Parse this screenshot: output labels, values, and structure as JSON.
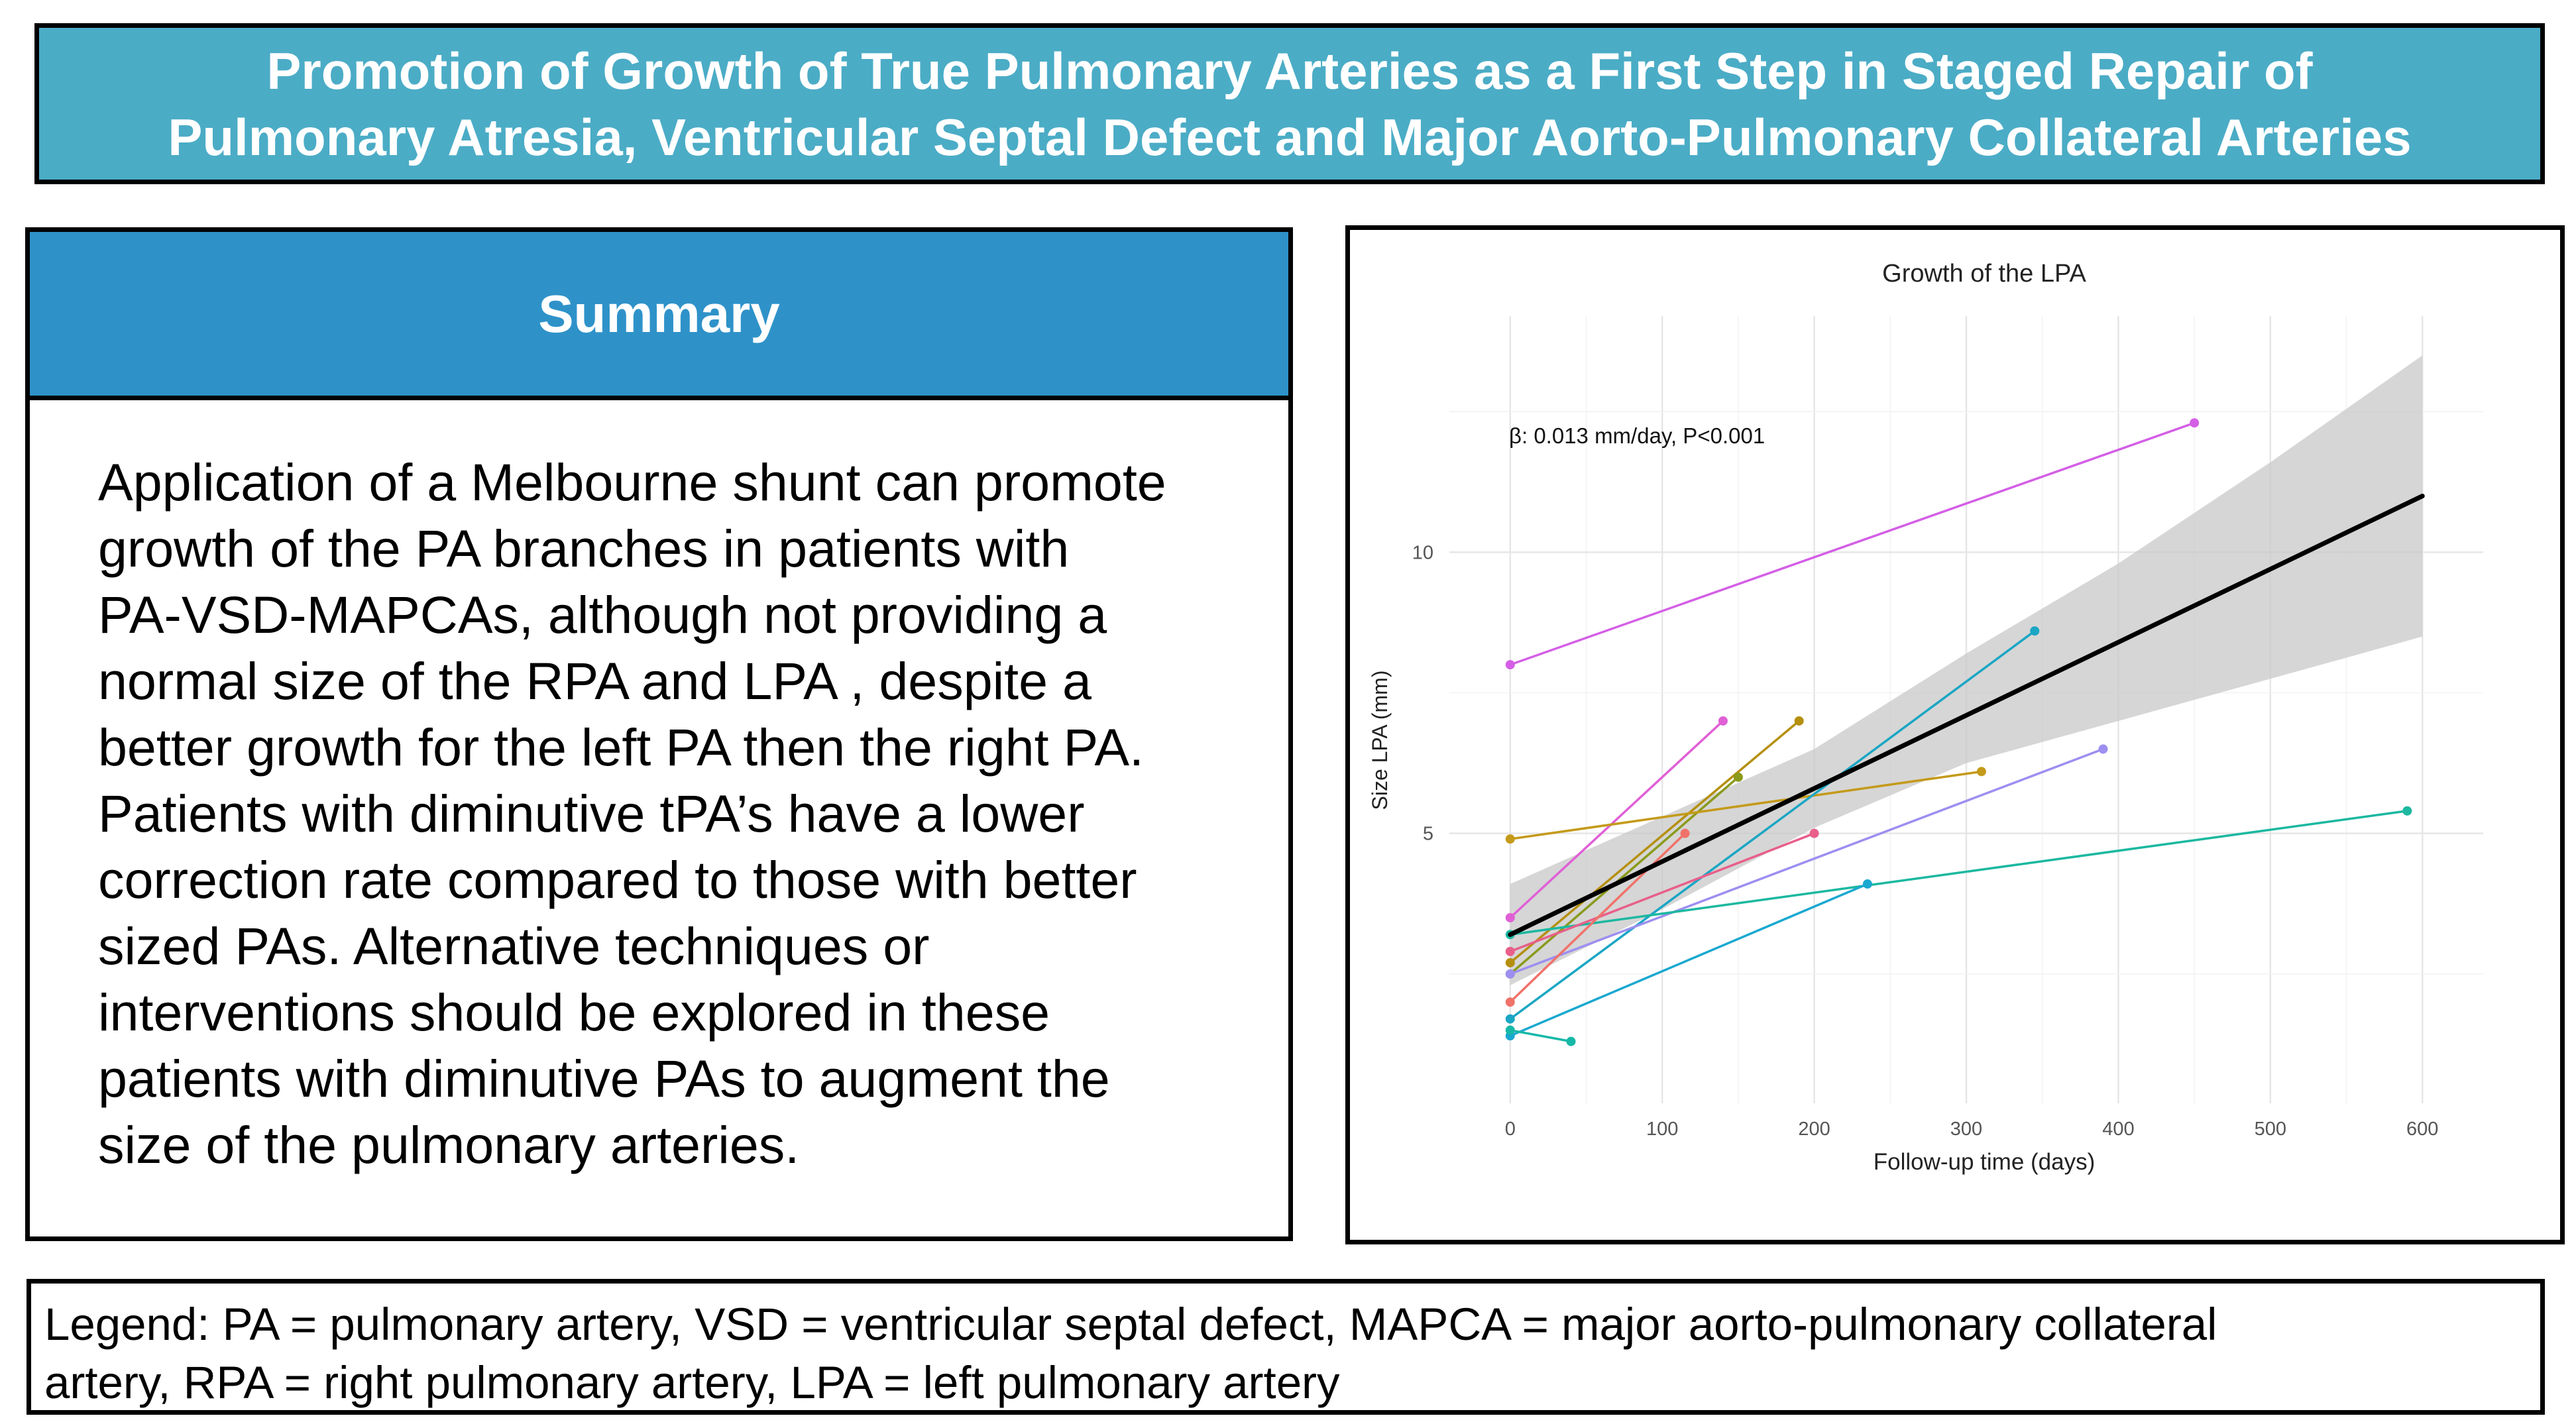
{
  "header": {
    "title_lines": [
      "Promotion of Growth of True Pulmonary Arteries as a First Step in Staged Repair of",
      "Pulmonary Atresia, Ventricular Septal Defect and Major Aorto-Pulmonary Collateral Arteries"
    ]
  },
  "summary": {
    "heading": "Summary",
    "lines": [
      "Application of a Melbourne shunt can promote",
      "growth of the PA branches in patients with",
      "PA-VSD-MAPCAs, although not providing a",
      "normal size of the RPA and LPA , despite a",
      "better growth for the left PA then the right PA.",
      "Patients with diminutive tPA’s have a lower",
      "correction rate compared to those with better",
      "sized PAs. Alternative techniques or",
      "interventions should be explored in these",
      "patients with diminutive PAs to augment the",
      "size of the pulmonary arteries."
    ]
  },
  "legend": {
    "lines": [
      "Legend: PA = pulmonary artery, VSD = ventricular septal defect, MAPCA = major aorto-pulmonary collateral",
      "artery, RPA = right pulmonary artery, LPA = left pulmonary artery"
    ]
  },
  "chart_data": {
    "type": "line",
    "title": "Growth of the LPA",
    "xlabel": "Follow-up time (days)",
    "ylabel": "Size LPA (mm)",
    "annotation": "β: 0.013 mm/day, P<0.001",
    "xlim": [
      -40,
      640
    ],
    "ylim": [
      0.2,
      14.2
    ],
    "xticks": [
      0,
      100,
      200,
      300,
      400,
      500,
      600
    ],
    "yticks": [
      5,
      10
    ],
    "grid": true,
    "legend": "none",
    "fit": {
      "x": [
        0,
        600
      ],
      "y": [
        3.2,
        11
      ],
      "ci_x": [
        0,
        100,
        200,
        300,
        400,
        500,
        600
      ],
      "ci_lower": [
        2.3,
        3.65,
        5.1,
        6.25,
        7.0,
        7.75,
        8.5
      ],
      "ci_upper": [
        4.1,
        5.3,
        6.5,
        8.2,
        9.8,
        11.6,
        13.5
      ]
    },
    "series": [
      {
        "color": "#d45fe6",
        "x": [
          0,
          450
        ],
        "y": [
          8,
          12.3
        ]
      },
      {
        "color": "#e060d6",
        "x": [
          0,
          140
        ],
        "y": [
          3.5,
          7
        ]
      },
      {
        "color": "#b5900f",
        "x": [
          0,
          190
        ],
        "y": [
          2.7,
          7
        ]
      },
      {
        "color": "#8a9a1a",
        "x": [
          0,
          150
        ],
        "y": [
          2.5,
          6
        ]
      },
      {
        "color": "#c49a1a",
        "x": [
          0,
          310
        ],
        "y": [
          4.9,
          6.1
        ]
      },
      {
        "color": "#1aa6c4",
        "x": [
          0,
          345
        ],
        "y": [
          1.7,
          8.6
        ]
      },
      {
        "color": "#9c8ff0",
        "x": [
          0,
          390
        ],
        "y": [
          2.5,
          6.5
        ]
      },
      {
        "color": "#1cb8a0",
        "x": [
          0,
          590
        ],
        "y": [
          3.2,
          5.4
        ]
      },
      {
        "color": "#e85f8a",
        "x": [
          0,
          200
        ],
        "y": [
          2.9,
          5
        ]
      },
      {
        "color": "#f0726a",
        "x": [
          0,
          115
        ],
        "y": [
          2,
          5
        ]
      },
      {
        "color": "#1aa8d0",
        "x": [
          0,
          235
        ],
        "y": [
          1.4,
          4.1
        ]
      },
      {
        "color": "#17b8a8",
        "x": [
          0,
          40
        ],
        "y": [
          1.5,
          1.3
        ]
      }
    ]
  }
}
